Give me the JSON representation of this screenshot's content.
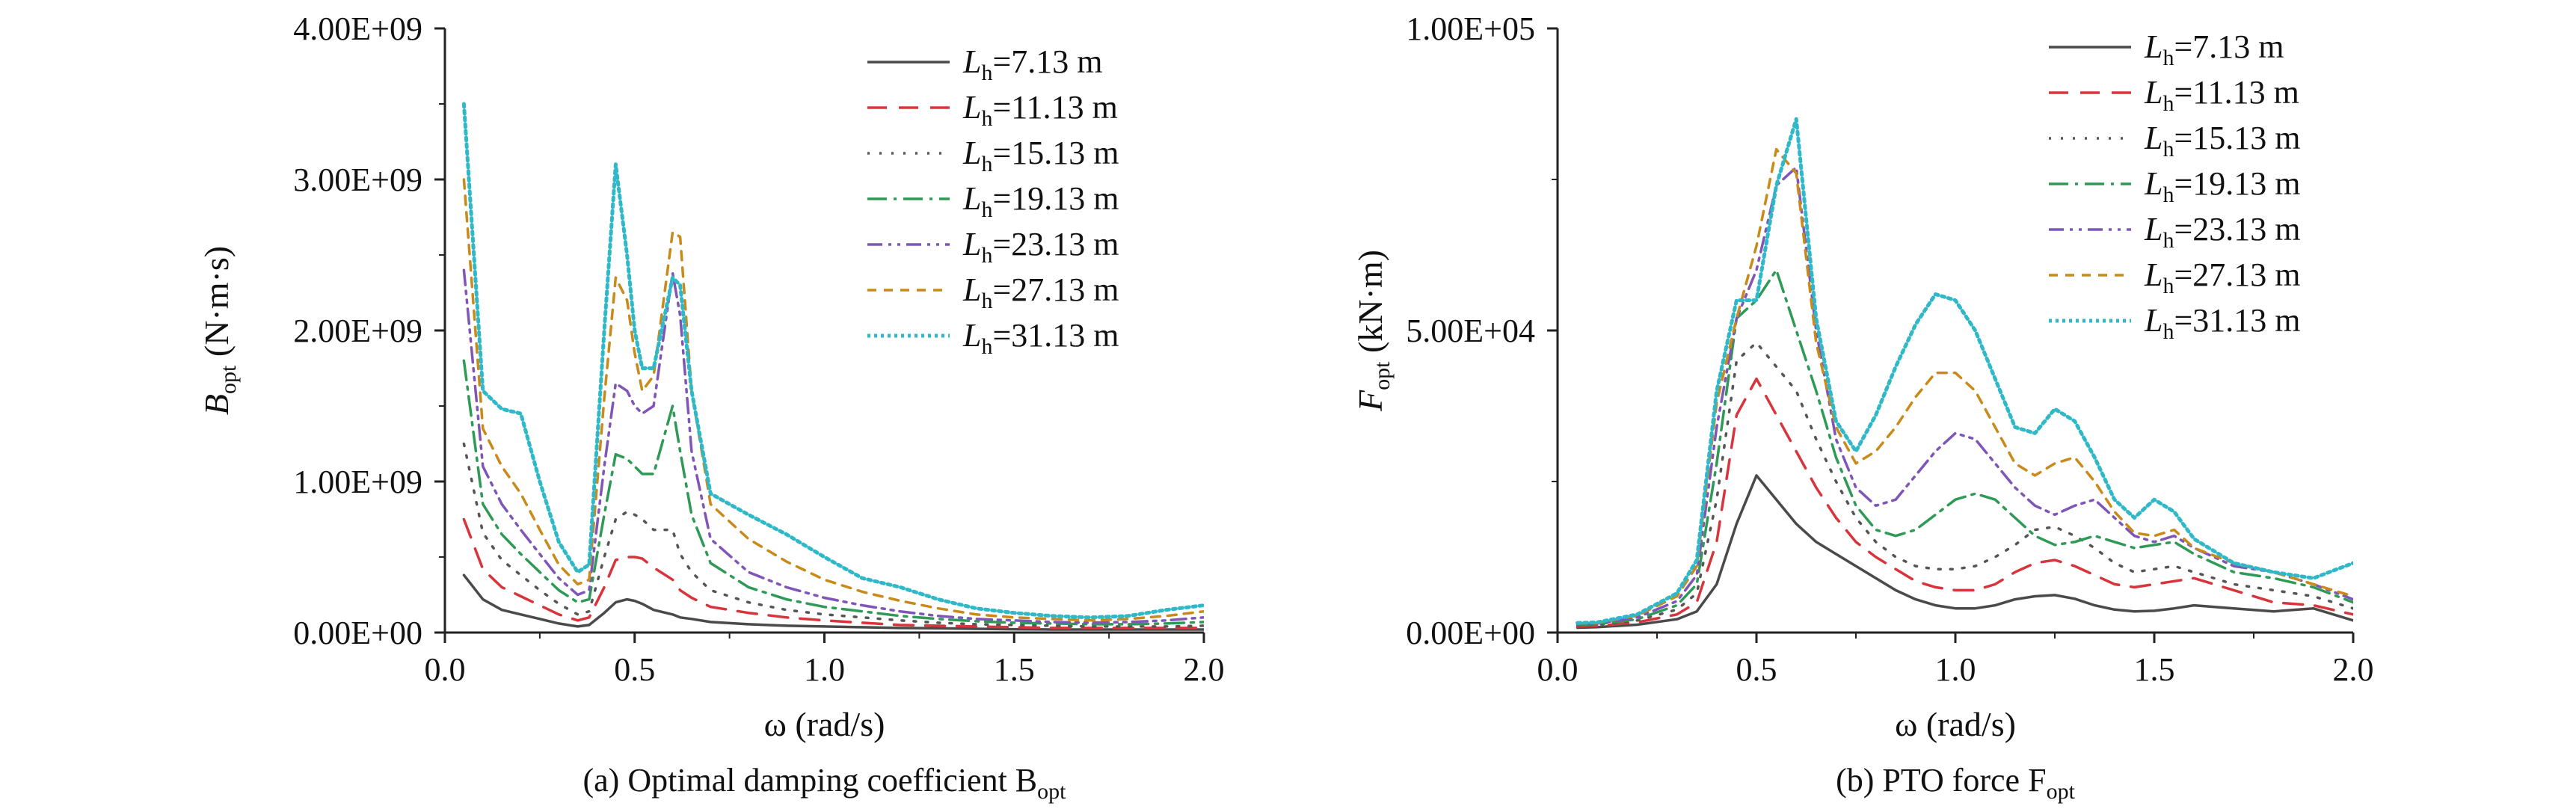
{
  "chart_data": [
    {
      "type": "line",
      "caption": "(a) Optimal damping coefficient B",
      "caption_sub": "opt",
      "ylabel_main": "B",
      "ylabel_sub": "opt",
      "ylabel_unit": " (N·m·s)",
      "xlabel": "ω (rad/s)",
      "xlim": [
        0,
        2.0
      ],
      "ylim": [
        0,
        4000000000.0
      ],
      "xticks": [
        0.0,
        0.5,
        1.0,
        1.5,
        2.0
      ],
      "xtick_labels": [
        "0.0",
        "0.5",
        "1.0",
        "1.5",
        "2.0"
      ],
      "yticks": [
        0,
        1000000000.0,
        2000000000.0,
        3000000000.0,
        4000000000.0
      ],
      "ytick_labels": [
        "0.00E+00",
        "1.00E+09",
        "2.00E+09",
        "3.00E+09",
        "4.00E+09"
      ],
      "legend_position": "top-right",
      "grid": false,
      "x": [
        0.05,
        0.1,
        0.15,
        0.2,
        0.25,
        0.3,
        0.35,
        0.38,
        0.42,
        0.45,
        0.48,
        0.5,
        0.52,
        0.55,
        0.6,
        0.62,
        0.65,
        0.7,
        0.8,
        0.9,
        1.0,
        1.1,
        1.2,
        1.3,
        1.4,
        1.5,
        1.6,
        1.7,
        1.8,
        1.9,
        2.0
      ],
      "series": [
        {
          "name": "=7.13 m",
          "values": [
            380000000.0,
            220000000.0,
            150000000.0,
            120000000.0,
            90000000.0,
            60000000.0,
            40000000.0,
            50000000.0,
            130000000.0,
            200000000.0,
            220000000.0,
            210000000.0,
            190000000.0,
            150000000.0,
            120000000.0,
            100000000.0,
            90000000.0,
            70000000.0,
            55000000.0,
            45000000.0,
            40000000.0,
            35000000.0,
            30000000.0,
            28000000.0,
            25000000.0,
            22000000.0,
            20000000.0,
            20000000.0,
            20000000.0,
            20000000.0,
            20000000.0
          ]
        },
        {
          "name": "=11.13 m",
          "values": [
            750000000.0,
            420000000.0,
            300000000.0,
            240000000.0,
            180000000.0,
            120000000.0,
            80000000.0,
            100000000.0,
            300000000.0,
            480000000.0,
            500000000.0,
            500000000.0,
            490000000.0,
            430000000.0,
            350000000.0,
            280000000.0,
            230000000.0,
            170000000.0,
            130000000.0,
            100000000.0,
            80000000.0,
            65000000.0,
            50000000.0,
            45000000.0,
            40000000.0,
            35000000.0,
            30000000.0,
            30000000.0,
            30000000.0,
            30000000.0,
            30000000.0
          ]
        },
        {
          "name": "=15.13 m",
          "values": [
            1250000000.0,
            660000000.0,
            480000000.0,
            380000000.0,
            280000000.0,
            190000000.0,
            120000000.0,
            140000000.0,
            500000000.0,
            750000000.0,
            800000000.0,
            780000000.0,
            750000000.0,
            680000000.0,
            680000000.0,
            520000000.0,
            400000000.0,
            280000000.0,
            200000000.0,
            150000000.0,
            120000000.0,
            100000000.0,
            80000000.0,
            65000000.0,
            55000000.0,
            50000000.0,
            45000000.0,
            40000000.0,
            40000000.0,
            40000000.0,
            45000000.0
          ]
        },
        {
          "name": "=19.13 m",
          "values": [
            1800000000.0,
            850000000.0,
            650000000.0,
            520000000.0,
            400000000.0,
            280000000.0,
            200000000.0,
            220000000.0,
            780000000.0,
            1180000000.0,
            1150000000.0,
            1100000000.0,
            1050000000.0,
            1050000000.0,
            1500000000.0,
            1200000000.0,
            780000000.0,
            460000000.0,
            300000000.0,
            220000000.0,
            170000000.0,
            140000000.0,
            110000000.0,
            90000000.0,
            75000000.0,
            65000000.0,
            60000000.0,
            55000000.0,
            55000000.0,
            60000000.0,
            70000000.0
          ]
        },
        {
          "name": "=23.13 m",
          "values": [
            2400000000.0,
            1100000000.0,
            850000000.0,
            680000000.0,
            520000000.0,
            360000000.0,
            250000000.0,
            280000000.0,
            1100000000.0,
            1650000000.0,
            1600000000.0,
            1500000000.0,
            1450000000.0,
            1500000000.0,
            2380000000.0,
            2100000000.0,
            1200000000.0,
            620000000.0,
            400000000.0,
            300000000.0,
            230000000.0,
            180000000.0,
            140000000.0,
            110000000.0,
            90000000.0,
            80000000.0,
            70000000.0,
            65000000.0,
            70000000.0,
            80000000.0,
            100000000.0
          ]
        },
        {
          "name": "=27.13 m",
          "values": [
            3000000000.0,
            1350000000.0,
            1100000000.0,
            920000000.0,
            680000000.0,
            450000000.0,
            320000000.0,
            350000000.0,
            1550000000.0,
            2350000000.0,
            2200000000.0,
            1850000000.0,
            1600000000.0,
            1700000000.0,
            2650000000.0,
            2620000000.0,
            1600000000.0,
            850000000.0,
            620000000.0,
            470000000.0,
            350000000.0,
            270000000.0,
            210000000.0,
            160000000.0,
            120000000.0,
            100000000.0,
            90000000.0,
            80000000.0,
            90000000.0,
            110000000.0,
            140000000.0
          ]
        },
        {
          "name": "=31.13 m",
          "values": [
            3500000000.0,
            1600000000.0,
            1480000000.0,
            1450000000.0,
            1000000000.0,
            600000000.0,
            400000000.0,
            450000000.0,
            2000000000.0,
            3100000000.0,
            2500000000.0,
            2000000000.0,
            1750000000.0,
            1750000000.0,
            2350000000.0,
            2300000000.0,
            1600000000.0,
            920000000.0,
            780000000.0,
            650000000.0,
            500000000.0,
            360000000.0,
            300000000.0,
            220000000.0,
            160000000.0,
            130000000.0,
            110000000.0,
            100000000.0,
            110000000.0,
            150000000.0,
            180000000.0
          ]
        }
      ]
    },
    {
      "type": "line",
      "caption": "(b) PTO force F",
      "caption_sub": "opt",
      "ylabel_main": "F",
      "ylabel_sub": "opt",
      "ylabel_unit": " (kN·m)",
      "xlabel": "ω (rad/s)",
      "xlim": [
        0,
        2.0
      ],
      "ylim": [
        0,
        100000.0
      ],
      "xticks": [
        0.0,
        0.5,
        1.0,
        1.5,
        2.0
      ],
      "xtick_labels": [
        "0.0",
        "0.5",
        "1.0",
        "1.5",
        "2.0"
      ],
      "yticks": [
        0,
        50000.0,
        100000.0
      ],
      "ytick_labels": [
        "0.00E+00",
        "5.00E+04",
        "1.00E+05"
      ],
      "legend_position": "top-right",
      "grid": false,
      "x": [
        0.05,
        0.1,
        0.2,
        0.3,
        0.35,
        0.4,
        0.45,
        0.5,
        0.55,
        0.6,
        0.65,
        0.7,
        0.75,
        0.8,
        0.85,
        0.9,
        0.95,
        1.0,
        1.05,
        1.1,
        1.15,
        1.2,
        1.25,
        1.3,
        1.35,
        1.4,
        1.45,
        1.5,
        1.55,
        1.6,
        1.7,
        1.8,
        1.9,
        2.0
      ],
      "series": [
        {
          "name": "=7.13 m",
          "values": [
            800,
            900,
            1300,
            2200,
            3500,
            8000,
            18000,
            26000,
            22000,
            18000,
            15000,
            13000,
            11000,
            9000,
            7000,
            5500,
            4500,
            4000,
            4000,
            4500,
            5500,
            6000,
            6200,
            5600,
            4500,
            3800,
            3500,
            3600,
            4000,
            4500,
            4000,
            3500,
            4000,
            2000
          ]
        },
        {
          "name": "=11.13 m",
          "values": [
            1000,
            1100,
            1700,
            3000,
            5000,
            15000,
            36000,
            42000,
            36000,
            30000,
            24000,
            19000,
            15000,
            12500,
            10500,
            8500,
            7500,
            7000,
            7000,
            8000,
            10000,
            11500,
            12000,
            11000,
            9500,
            8000,
            7500,
            8000,
            8500,
            9000,
            7000,
            5000,
            4500,
            3000
          ]
        },
        {
          "name": "=15.13 m",
          "values": [
            1200,
            1300,
            2000,
            3800,
            6500,
            22000,
            45000,
            48000,
            44000,
            40000,
            32000,
            25000,
            19000,
            15000,
            12500,
            11000,
            10500,
            10500,
            11000,
            12500,
            14500,
            17000,
            17500,
            16000,
            14000,
            11500,
            10000,
            10500,
            11000,
            10000,
            8000,
            7000,
            6000,
            4000
          ]
        },
        {
          "name": "=19.13 m",
          "values": [
            1300,
            1400,
            2200,
            4500,
            8000,
            28000,
            52000,
            55000,
            60000,
            50000,
            40000,
            29000,
            21000,
            17000,
            16000,
            17000,
            19500,
            22000,
            23000,
            22000,
            19000,
            16000,
            14500,
            15000,
            16000,
            15000,
            14000,
            14500,
            15000,
            13000,
            10000,
            9000,
            7500,
            5000
          ]
        },
        {
          "name": "=23.13 m",
          "values": [
            1400,
            1500,
            2500,
            5200,
            9500,
            34000,
            52000,
            60000,
            74000,
            77000,
            50000,
            32000,
            24000,
            21000,
            22000,
            26000,
            30000,
            33000,
            32000,
            28000,
            24000,
            21000,
            19500,
            21000,
            22000,
            19000,
            16000,
            15000,
            16000,
            14000,
            11000,
            10000,
            8000,
            5500
          ]
        },
        {
          "name": "=27.13 m",
          "values": [
            1500,
            1600,
            2800,
            6000,
            11000,
            38000,
            52000,
            64000,
            80000,
            76000,
            48000,
            34000,
            28000,
            30000,
            34000,
            39000,
            43000,
            43000,
            40000,
            34000,
            28000,
            26000,
            28000,
            29000,
            25000,
            20000,
            16500,
            16000,
            17000,
            14000,
            11500,
            10000,
            8000,
            6000
          ]
        },
        {
          "name": "=31.13 m",
          "values": [
            1600,
            1700,
            3000,
            6500,
            12000,
            40000,
            55000,
            55000,
            74000,
            85000,
            52000,
            35000,
            30000,
            36000,
            44000,
            51000,
            56000,
            55000,
            50000,
            42000,
            34000,
            33000,
            37000,
            35000,
            29000,
            22000,
            19000,
            22000,
            20000,
            15500,
            11500,
            10000,
            9000,
            11500
          ]
        }
      ]
    }
  ],
  "series_styles": [
    {
      "color": "#4a4a4a",
      "dash": ""
    },
    {
      "color": "#d8343c",
      "dash": "26,16"
    },
    {
      "color": "#555555",
      "dash": "3,13"
    },
    {
      "color": "#2e9a55",
      "dash": "26,9,4,9"
    },
    {
      "color": "#7f55b8",
      "dash": "20,8,4,8,4,8"
    },
    {
      "color": "#c98a1a",
      "dash": "12,10"
    },
    {
      "color": "#2fb8c8",
      "dash": "4,5"
    }
  ],
  "legend_symbol": "L",
  "legend_symbol_sub": "h"
}
